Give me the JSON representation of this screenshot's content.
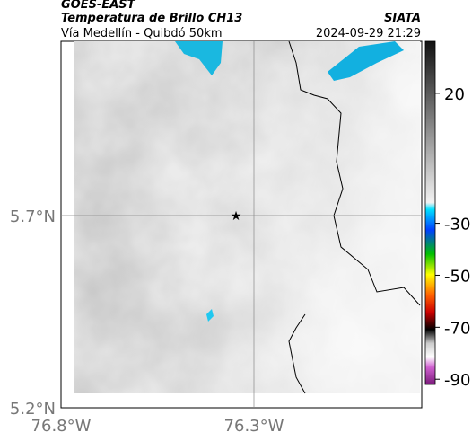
{
  "header": {
    "source": "GOES-EAST",
    "title": "Temperatura de Brillo CH13",
    "subtitle": "Vía Medellín - Quibdó 50km",
    "brand": "SIATA",
    "timestamp": "2024-09-29 21:29"
  },
  "map": {
    "lat_labels": [
      "5.7°N",
      "5.2°N"
    ],
    "lon_labels": [
      "76.8°W",
      "76.3°W"
    ]
  },
  "colorbar": {
    "lim": [
      -92,
      40
    ],
    "ticks": [
      20,
      -30,
      -50,
      -70,
      -90
    ]
  }
}
